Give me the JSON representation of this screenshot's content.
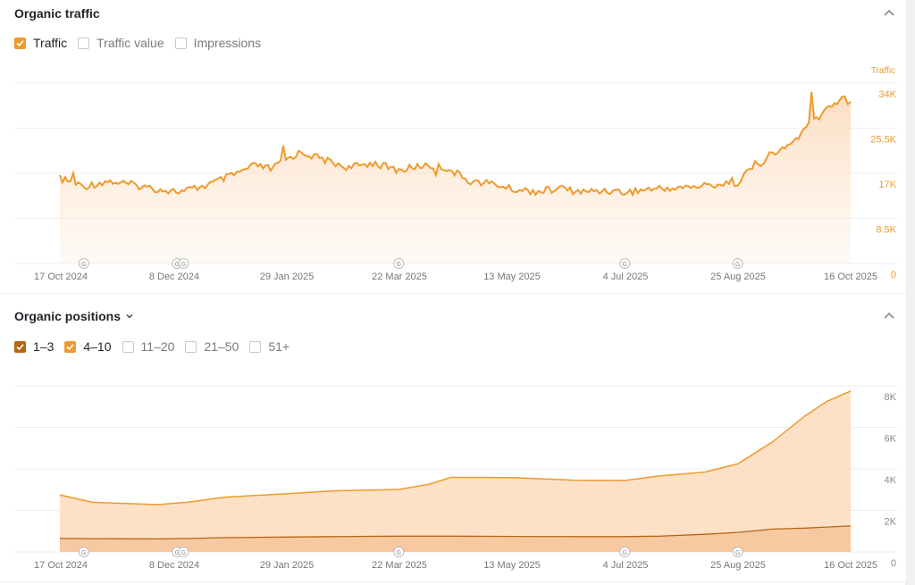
{
  "traffic": {
    "title": "Organic traffic",
    "checkboxes": [
      {
        "label": "Traffic",
        "checked": true
      },
      {
        "label": "Traffic value",
        "checked": false
      },
      {
        "label": "Impressions",
        "checked": false
      }
    ],
    "axis_title": "Traffic",
    "ytick_labels": [
      "34K",
      "25.5K",
      "17K",
      "8.5K",
      "0"
    ],
    "x_labels": [
      "17 Oct 2024",
      "8 Dec 2024",
      "29 Jan 2025",
      "22 Mar 2025",
      "13 May 2025",
      "4 Jul 2025",
      "25 Aug 2025",
      "16 Oct 2025"
    ],
    "google_marker_label": "G"
  },
  "positions": {
    "title": "Organic positions",
    "checkboxes": [
      {
        "label": "1–3",
        "checked": true,
        "color": "#b66516"
      },
      {
        "label": "4–10",
        "checked": true,
        "color": "#ef9a2b"
      },
      {
        "label": "11–20",
        "checked": false
      },
      {
        "label": "21–50",
        "checked": false
      },
      {
        "label": "51+",
        "checked": false
      }
    ],
    "ytick_labels": [
      "8K",
      "6K",
      "4K",
      "2K",
      "0"
    ],
    "x_labels": [
      "17 Oct 2024",
      "8 Dec 2024",
      "29 Jan 2025",
      "22 Mar 2025",
      "13 May 2025",
      "4 Jul 2025",
      "25 Aug 2025",
      "16 Oct 2025"
    ]
  },
  "colors": {
    "orange": "#ef9a2b",
    "orange_fill": "#fde6d2",
    "brown": "#b66516",
    "grid": "#eeeeee",
    "tick": "#777777"
  },
  "chart_data": [
    {
      "type": "line",
      "title": "",
      "ylabel": "Traffic",
      "ylim": [
        0,
        34000
      ],
      "x_start": "2024-10-17",
      "x_end": "2025-10-16",
      "x": [
        "2024-10-17",
        "2024-10-28",
        "2024-11-08",
        "2024-11-20",
        "2024-12-01",
        "2024-12-12",
        "2024-12-24",
        "2025-01-04",
        "2025-01-15",
        "2025-01-22",
        "2025-01-29",
        "2025-02-05",
        "2025-02-16",
        "2025-02-27",
        "2025-03-10",
        "2025-03-22",
        "2025-04-02",
        "2025-04-13",
        "2025-04-24",
        "2025-05-05",
        "2025-05-13",
        "2025-05-24",
        "2025-06-04",
        "2025-06-15",
        "2025-06-26",
        "2025-07-04",
        "2025-07-15",
        "2025-07-26",
        "2025-08-06",
        "2025-08-17",
        "2025-08-25",
        "2025-09-02",
        "2025-09-10",
        "2025-09-17",
        "2025-09-22",
        "2025-09-28",
        "2025-10-05",
        "2025-10-12",
        "2025-10-16"
      ],
      "series": [
        {
          "name": "Traffic",
          "values": [
            16000,
            14500,
            15500,
            14800,
            14000,
            13500,
            14800,
            16500,
            18500,
            17800,
            19500,
            21000,
            19500,
            18000,
            19000,
            17500,
            18500,
            18000,
            15500,
            15000,
            14000,
            13600,
            14000,
            13500,
            13800,
            13400,
            14000,
            14200,
            14500,
            15000,
            15500,
            18500,
            20500,
            22000,
            24000,
            26500,
            29000,
            31500,
            30500
          ]
        }
      ]
    },
    {
      "type": "area",
      "title": "",
      "ylim": [
        0,
        8000
      ],
      "x_start": "2024-10-17",
      "x_end": "2025-10-16",
      "x": [
        "2024-10-17",
        "2024-11-01",
        "2024-12-01",
        "2024-12-15",
        "2025-01-01",
        "2025-01-29",
        "2025-02-20",
        "2025-03-22",
        "2025-04-05",
        "2025-04-15",
        "2025-05-13",
        "2025-06-10",
        "2025-07-04",
        "2025-07-20",
        "2025-08-10",
        "2025-08-25",
        "2025-09-10",
        "2025-09-25",
        "2025-10-05",
        "2025-10-16"
      ],
      "series": [
        {
          "name": "1–3",
          "values": [
            650,
            640,
            630,
            650,
            690,
            720,
            740,
            760,
            760,
            760,
            750,
            740,
            740,
            760,
            850,
            940,
            1100,
            1150,
            1200,
            1250
          ]
        },
        {
          "name": "4–10",
          "values": [
            2100,
            1750,
            1650,
            1750,
            1950,
            2080,
            2200,
            2250,
            2500,
            2830,
            2830,
            2720,
            2700,
            2900,
            3000,
            3300,
            4200,
            5400,
            6050,
            6500
          ]
        }
      ]
    }
  ]
}
